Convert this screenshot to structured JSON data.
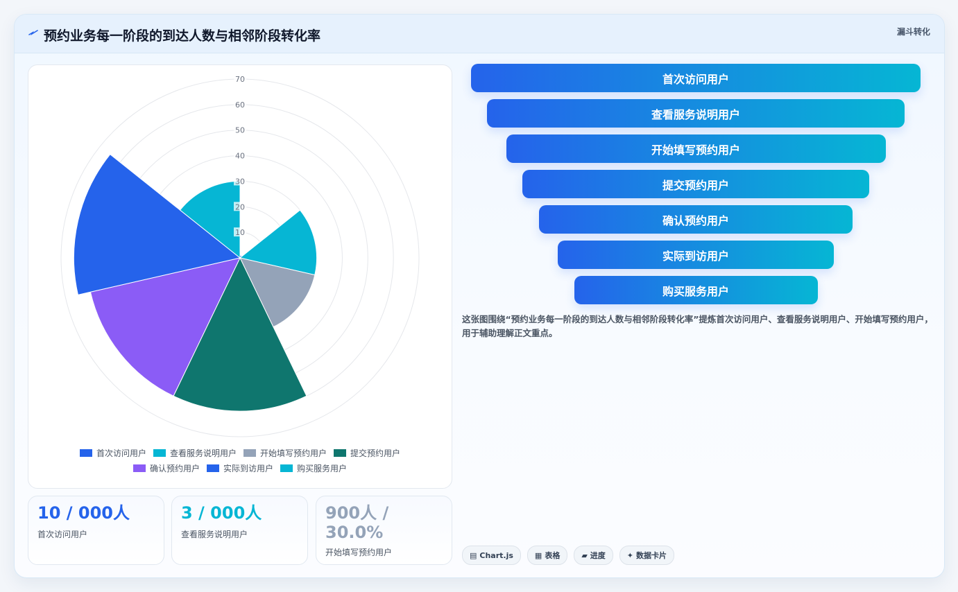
{
  "header": {
    "title": "预约业务每一阶段的到达人数与相邻阶段转化率",
    "tag": "漏斗转化"
  },
  "chart_data": {
    "type": "polarArea",
    "categories": [
      "首次访问用户",
      "查看服务说明用户",
      "开始填写预约用户",
      "提交预约用户",
      "确认预约用户",
      "实际到访用户",
      "购买服务用户"
    ],
    "values": [
      1,
      30,
      30,
      60,
      60,
      65,
      30
    ],
    "colors": [
      "#2563eb",
      "#06b6d4",
      "#94a3b8",
      "#0f766e",
      "#8b5cf6",
      "#2563eb",
      "#06b6d4"
    ],
    "r_ticks": [
      0,
      10,
      20,
      30,
      40,
      50,
      60,
      70
    ],
    "rlim": [
      0,
      70
    ],
    "legend_position": "bottom"
  },
  "funnel": {
    "stages": [
      "首次访问用户",
      "查看服务说明用户",
      "开始填写预约用户",
      "提交预约用户",
      "确认预约用户",
      "实际到访用户",
      "购买服务用户"
    ]
  },
  "description": "这张图围绕“预约业务每一阶段的到达人数与相邻阶段转化率”提炼首次访问用户、查看服务说明用户、开始填写预约用户，用于辅助理解正文重点。",
  "stats": [
    {
      "value": "10 / 000人",
      "label": "首次访问用户",
      "color": "#2563eb"
    },
    {
      "value": "3 / 000人",
      "label": "查看服务说明用户",
      "color": "#06b6d4"
    },
    {
      "value": "900人 / 30.0%",
      "label": "开始填写预约用户",
      "color": "#94a3b8"
    }
  ],
  "chips": [
    {
      "icon": "▤",
      "label": "Chart.js"
    },
    {
      "icon": "▦",
      "label": "表格"
    },
    {
      "icon": "▰",
      "label": "进度"
    },
    {
      "icon": "✦",
      "label": "数据卡片"
    }
  ]
}
